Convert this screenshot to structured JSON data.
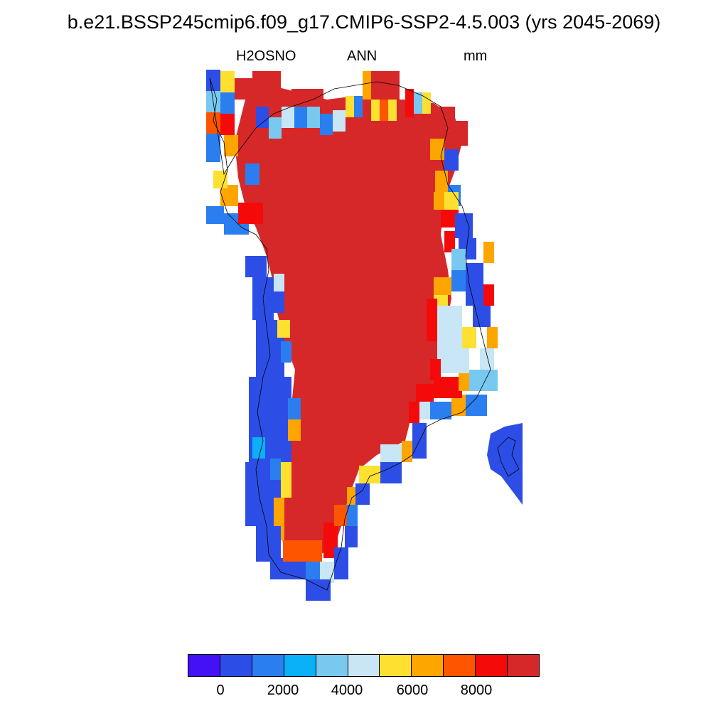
{
  "title": "b.e21.BSSP245cmip6.f09_g17.CMIP6-SSP2-4.5.003 (yrs 2045-2069)",
  "subtitle": {
    "variable": "H2OSNO",
    "season": "ANN",
    "units": "mm"
  },
  "colorbar": {
    "colors": [
      "#4410f5",
      "#2d4ee6",
      "#2b7ef0",
      "#0ab0f8",
      "#78c8f0",
      "#c8e6f5",
      "#fde030",
      "#fea500",
      "#fd5500",
      "#f50a0a",
      "#d62828"
    ],
    "labels": [
      "0",
      "2000",
      "4000",
      "6000",
      "8000"
    ]
  },
  "legend_labels": {
    "l0": "0",
    "l1": "2000",
    "l2": "4000",
    "l3": "6000",
    "l4": "8000"
  }
}
